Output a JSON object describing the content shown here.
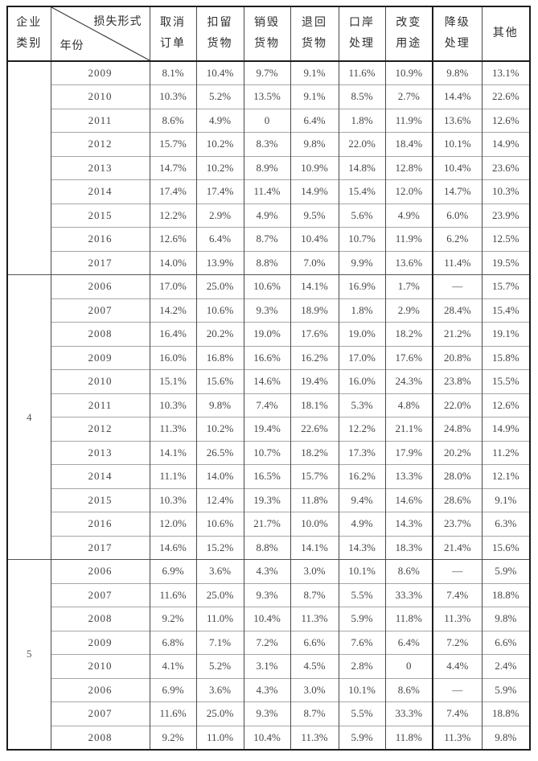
{
  "page": {
    "background": "#ffffff",
    "border_color": "#1c1c1c"
  },
  "table": {
    "header": {
      "category_line1": "企业",
      "category_line2": "类别",
      "diag_top_label": "损失形式",
      "diag_bottom_label": "年份",
      "columns": [
        [
          "取消",
          "订单"
        ],
        [
          "扣留",
          "货物"
        ],
        [
          "销毁",
          "货物"
        ],
        [
          "退回",
          "货物"
        ],
        [
          "口岸",
          "处理"
        ],
        [
          "改变",
          "用途"
        ],
        [
          "降级",
          "处理"
        ],
        [
          "其他"
        ]
      ]
    },
    "sections": [
      {
        "category": "",
        "rows": [
          {
            "year": "2009",
            "values": [
              "8.1%",
              "10.4%",
              "9.7%",
              "9.1%",
              "11.6%",
              "10.9%",
              "9.8%",
              "13.1%"
            ]
          },
          {
            "year": "2010",
            "values": [
              "10.3%",
              "5.2%",
              "13.5%",
              "9.1%",
              "8.5%",
              "2.7%",
              "14.4%",
              "22.6%"
            ]
          },
          {
            "year": "2011",
            "values": [
              "8.6%",
              "4.9%",
              "0",
              "6.4%",
              "1.8%",
              "11.9%",
              "13.6%",
              "12.6%"
            ]
          },
          {
            "year": "2012",
            "values": [
              "15.7%",
              "10.2%",
              "8.3%",
              "9.8%",
              "22.0%",
              "18.4%",
              "10.1%",
              "14.9%"
            ]
          },
          {
            "year": "2013",
            "values": [
              "14.7%",
              "10.2%",
              "8.9%",
              "10.9%",
              "14.8%",
              "12.8%",
              "10.4%",
              "23.6%"
            ]
          },
          {
            "year": "2014",
            "values": [
              "17.4%",
              "17.4%",
              "11.4%",
              "14.9%",
              "15.4%",
              "12.0%",
              "14.7%",
              "10.3%"
            ]
          },
          {
            "year": "2015",
            "values": [
              "12.2%",
              "2.9%",
              "4.9%",
              "9.5%",
              "5.6%",
              "4.9%",
              "6.0%",
              "23.9%"
            ]
          },
          {
            "year": "2016",
            "values": [
              "12.6%",
              "6.4%",
              "8.7%",
              "10.4%",
              "10.7%",
              "11.9%",
              "6.2%",
              "12.5%"
            ]
          },
          {
            "year": "2017",
            "values": [
              "14.0%",
              "13.9%",
              "8.8%",
              "7.0%",
              "9.9%",
              "13.6%",
              "11.4%",
              "19.5%"
            ]
          }
        ]
      },
      {
        "category": "4",
        "rows": [
          {
            "year": "2006",
            "values": [
              "17.0%",
              "25.0%",
              "10.6%",
              "14.1%",
              "16.9%",
              "1.7%",
              "—",
              "15.7%"
            ]
          },
          {
            "year": "2007",
            "values": [
              "14.2%",
              "10.6%",
              "9.3%",
              "18.9%",
              "1.8%",
              "2.9%",
              "28.4%",
              "15.4%"
            ]
          },
          {
            "year": "2008",
            "values": [
              "16.4%",
              "20.2%",
              "19.0%",
              "17.6%",
              "19.0%",
              "18.2%",
              "21.2%",
              "19.1%"
            ]
          },
          {
            "year": "2009",
            "values": [
              "16.0%",
              "16.8%",
              "16.6%",
              "16.2%",
              "17.0%",
              "17.6%",
              "20.8%",
              "15.8%"
            ]
          },
          {
            "year": "2010",
            "values": [
              "15.1%",
              "15.6%",
              "14.6%",
              "19.4%",
              "16.0%",
              "24.3%",
              "23.8%",
              "15.5%"
            ]
          },
          {
            "year": "2011",
            "values": [
              "10.3%",
              "9.8%",
              "7.4%",
              "18.1%",
              "5.3%",
              "4.8%",
              "22.0%",
              "12.6%"
            ]
          },
          {
            "year": "2012",
            "values": [
              "11.3%",
              "10.2%",
              "19.4%",
              "22.6%",
              "12.2%",
              "21.1%",
              "24.8%",
              "14.9%"
            ]
          },
          {
            "year": "2013",
            "values": [
              "14.1%",
              "26.5%",
              "10.7%",
              "18.2%",
              "17.3%",
              "17.9%",
              "20.2%",
              "11.2%"
            ]
          },
          {
            "year": "2014",
            "values": [
              "11.1%",
              "14.0%",
              "16.5%",
              "15.7%",
              "16.2%",
              "13.3%",
              "28.0%",
              "12.1%"
            ]
          },
          {
            "year": "2015",
            "values": [
              "10.3%",
              "12.4%",
              "19.3%",
              "11.8%",
              "9.4%",
              "14.6%",
              "28.6%",
              "9.1%"
            ]
          },
          {
            "year": "2016",
            "values": [
              "12.0%",
              "10.6%",
              "21.7%",
              "10.0%",
              "4.9%",
              "14.3%",
              "23.7%",
              "6.3%"
            ]
          },
          {
            "year": "2017",
            "values": [
              "14.6%",
              "15.2%",
              "8.8%",
              "14.1%",
              "14.3%",
              "18.3%",
              "21.4%",
              "15.6%"
            ]
          }
        ]
      },
      {
        "category": "5",
        "rows": [
          {
            "year": "2006",
            "values": [
              "6.9%",
              "3.6%",
              "4.3%",
              "3.0%",
              "10.1%",
              "8.6%",
              "—",
              "5.9%"
            ]
          },
          {
            "year": "2007",
            "values": [
              "11.6%",
              "25.0%",
              "9.3%",
              "8.7%",
              "5.5%",
              "33.3%",
              "7.4%",
              "18.8%"
            ]
          },
          {
            "year": "2008",
            "values": [
              "9.2%",
              "11.0%",
              "10.4%",
              "11.3%",
              "5.9%",
              "11.8%",
              "11.3%",
              "9.8%"
            ]
          },
          {
            "year": "2009",
            "values": [
              "6.8%",
              "7.1%",
              "7.2%",
              "6.6%",
              "7.6%",
              "6.4%",
              "7.2%",
              "6.6%"
            ]
          },
          {
            "year": "2010",
            "values": [
              "4.1%",
              "5.2%",
              "3.1%",
              "4.5%",
              "2.8%",
              "0",
              "4.4%",
              "2.4%"
            ]
          },
          {
            "year": "2006",
            "values": [
              "6.9%",
              "3.6%",
              "4.3%",
              "3.0%",
              "10.1%",
              "8.6%",
              "—",
              "5.9%"
            ]
          },
          {
            "year": "2007",
            "values": [
              "11.6%",
              "25.0%",
              "9.3%",
              "8.7%",
              "5.5%",
              "33.3%",
              "7.4%",
              "18.8%"
            ]
          },
          {
            "year": "2008",
            "values": [
              "9.2%",
              "11.0%",
              "10.4%",
              "11.3%",
              "5.9%",
              "11.8%",
              "11.3%",
              "9.8%"
            ]
          }
        ]
      }
    ]
  }
}
